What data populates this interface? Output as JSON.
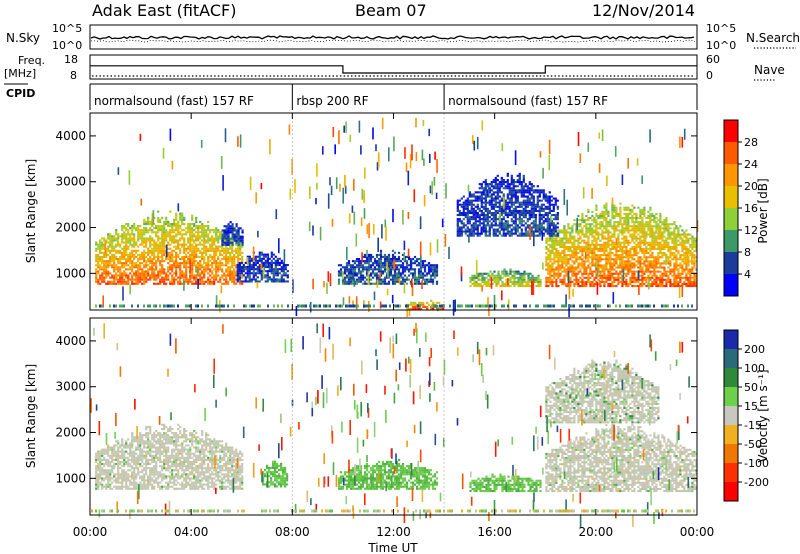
{
  "header": {
    "station": "Adak East (fitACF)",
    "beam": "Beam 07",
    "date": "12/Nov/2014"
  },
  "summary": {
    "nsky_label": "N.Sky",
    "nsky_ticks": [
      "10^5",
      "10^0"
    ],
    "nsearch_label": "N.Search",
    "freq_label_line1": "Freq.",
    "freq_label_line2": "[MHz]",
    "freq_ticks": [
      "18",
      "8"
    ],
    "nave_label": "Nave",
    "nave_ticks": [
      "60",
      "0"
    ],
    "cpid_label": "CPID",
    "cpid_segments": [
      {
        "label": "normalsound (fast) 157 RF",
        "start_hour": 0,
        "end_hour": 8
      },
      {
        "label": "rbsp 200 RF",
        "start_hour": 8,
        "end_hour": 14
      },
      {
        "label": "normalsound (fast) 157 RF",
        "start_hour": 14,
        "end_hour": 24
      }
    ],
    "freq_profile": [
      {
        "start_hour": 0,
        "end_hour": 10,
        "value": 13.5
      },
      {
        "start_hour": 10,
        "end_hour": 18,
        "value": 10.5
      },
      {
        "start_hour": 18,
        "end_hour": 24,
        "value": 13.5
      }
    ]
  },
  "power_colorbar": {
    "label": "Power [dB]",
    "ticks": [
      "28",
      "24",
      "20",
      "16",
      "12",
      "8",
      "4"
    ],
    "colors": [
      "#ff0000",
      "#ff5a00",
      "#ff9600",
      "#e8c000",
      "#8fcf3c",
      "#3c9a6a",
      "#1a3c9a",
      "#0000ff"
    ]
  },
  "velocity_colorbar": {
    "label": "Velocity [m s⁻¹]",
    "ticks": [
      "200",
      "100",
      "50",
      "15",
      "-15",
      "-50",
      "-100",
      "-200"
    ],
    "colors": [
      "#1a2aa8",
      "#2a6a7a",
      "#2e8a3a",
      "#6cd04a",
      "#c8c8c0",
      "#f0b020",
      "#f07800",
      "#ff3000",
      "#ff0000"
    ]
  },
  "chart_data": {
    "type": "heatmap",
    "x": {
      "label": "Time UT",
      "ticks": [
        "00:00",
        "04:00",
        "08:00",
        "12:00",
        "16:00",
        "20:00",
        "00:00"
      ],
      "range_hours": [
        0,
        24
      ]
    },
    "y": {
      "label": "Slant Range [km]",
      "ticks": [
        "1000",
        "2000",
        "3000",
        "4000"
      ],
      "range_km": [
        200,
        4500
      ]
    },
    "panels": [
      {
        "name": "power",
        "regions": [
          {
            "t0": 0.2,
            "t1": 6.0,
            "r0": 750,
            "r1": 2400,
            "level": 0.85
          },
          {
            "t0": 5.2,
            "t1": 6.0,
            "r0": 1600,
            "r1": 2200,
            "level": 0.15
          },
          {
            "t0": 5.8,
            "t1": 7.8,
            "r0": 800,
            "r1": 1500,
            "level": 0.15
          },
          {
            "t0": 9.8,
            "t1": 13.7,
            "r0": 750,
            "r1": 1500,
            "level": 0.2
          },
          {
            "t0": 12.5,
            "t1": 14.0,
            "r0": 200,
            "r1": 400,
            "level": 0.9
          },
          {
            "t0": 15.0,
            "t1": 17.8,
            "r0": 700,
            "r1": 1100,
            "level": 0.55
          },
          {
            "t0": 18.0,
            "t1": 24.0,
            "r0": 700,
            "r1": 2600,
            "level": 0.85
          },
          {
            "t0": 14.5,
            "t1": 18.5,
            "r0": 1800,
            "r1": 3200,
            "level": 0.15
          }
        ]
      },
      {
        "name": "velocity",
        "regions": [
          {
            "t0": 0.2,
            "t1": 6.0,
            "r0": 750,
            "r1": 2200,
            "level": 0.45
          },
          {
            "t0": 6.8,
            "t1": 7.8,
            "r0": 800,
            "r1": 1400,
            "level": 0.3
          },
          {
            "t0": 9.8,
            "t1": 13.7,
            "r0": 750,
            "r1": 1400,
            "level": 0.3
          },
          {
            "t0": 15.0,
            "t1": 17.8,
            "r0": 700,
            "r1": 1100,
            "level": 0.3
          },
          {
            "t0": 18.0,
            "t1": 24.0,
            "r0": 700,
            "r1": 2200,
            "level": 0.45
          },
          {
            "t0": 18.0,
            "t1": 22.5,
            "r0": 2200,
            "r1": 3600,
            "level": 0.35
          }
        ]
      }
    ]
  }
}
